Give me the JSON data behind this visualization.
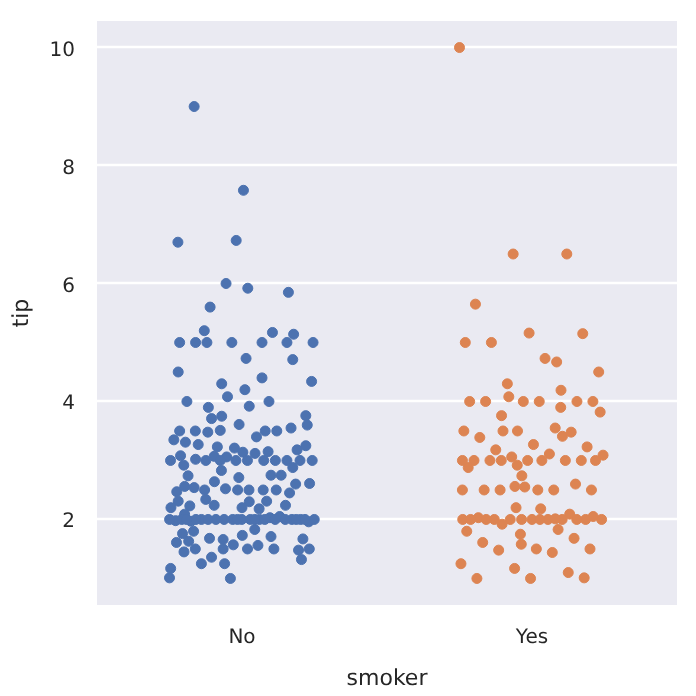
{
  "chart_data": {
    "type": "scatter",
    "xlabel": "smoker",
    "ylabel": "tip",
    "categories": [
      "No",
      "Yes"
    ],
    "ylim": [
      0.55,
      10.45
    ],
    "yticks": [
      2,
      4,
      6,
      8,
      10
    ],
    "grid": "y",
    "marker": "circle",
    "series": [
      {
        "color": "#4c72b0",
        "x": [
          "No",
          "No",
          "No",
          "No",
          "No",
          "No",
          "No",
          "No",
          "No",
          "No",
          "No",
          "No",
          "No",
          "No",
          "No",
          "No",
          "No",
          "No",
          "No",
          "No",
          "No",
          "No",
          "No",
          "No",
          "No",
          "No",
          "No",
          "No",
          "No",
          "No",
          "No",
          "No",
          "No",
          "No",
          "No",
          "No",
          "No",
          "No",
          "No",
          "No",
          "No",
          "No",
          "No",
          "No",
          "No",
          "No",
          "No",
          "No",
          "No",
          "No",
          "No",
          "No",
          "No",
          "No",
          "No",
          "No",
          "No",
          "No",
          "No",
          "No",
          "No",
          "No",
          "No",
          "No",
          "No",
          "No",
          "No",
          "No",
          "No",
          "No",
          "No",
          "No",
          "No",
          "No",
          "No",
          "No",
          "No",
          "No",
          "No",
          "No",
          "No",
          "No",
          "No",
          "No",
          "No",
          "No",
          "No",
          "No",
          "No",
          "No",
          "No",
          "No",
          "No",
          "No",
          "No",
          "No",
          "No",
          "No",
          "No",
          "No",
          "No",
          "No",
          "No",
          "No",
          "No",
          "No",
          "No",
          "No",
          "No",
          "No",
          "No",
          "No",
          "No",
          "No",
          "No",
          "No",
          "No",
          "No",
          "No",
          "No",
          "No",
          "No",
          "No",
          "No",
          "No",
          "No",
          "No",
          "No",
          "No",
          "No",
          "No",
          "No",
          "No",
          "No",
          "No",
          "No",
          "No",
          "No",
          "No",
          "No",
          "No",
          "No",
          "No",
          "No",
          "No",
          "No",
          "No",
          "No",
          "No",
          "No",
          "No"
        ],
        "values": [
          1.01,
          1.66,
          3.5,
          3.31,
          3.61,
          4.71,
          2,
          3.12,
          1.96,
          3.23,
          1.71,
          5,
          1.57,
          3,
          3.02,
          3.92,
          1.67,
          3.71,
          3.5,
          3.35,
          4.08,
          2.75,
          2.23,
          7.58,
          3.18,
          2.34,
          2,
          2,
          4.3,
          3,
          1.45,
          2.5,
          3,
          2.45,
          3.27,
          3.6,
          2,
          3.07,
          2.31,
          5,
          2.24,
          2.54,
          3.06,
          1.32,
          5.6,
          3,
          5,
          6,
          2.05,
          3,
          2.5,
          2.6,
          5.2,
          1.56,
          4.34,
          3.51,
          1.5,
          1.76,
          6.73,
          3.21,
          2,
          1.98,
          3.76,
          2.64,
          3.15,
          2.47,
          1,
          2,
          2.09,
          1.97,
          3,
          3.14,
          5,
          2.2,
          1.25,
          3.08,
          4,
          3,
          2.71,
          3,
          3.4,
          1.83,
          2.03,
          5.17,
          2,
          4,
          5.85,
          3,
          1.5,
          1.8,
          2.92,
          2.31,
          1.68,
          2.5,
          2,
          2.52,
          4.2,
          1.48,
          2,
          2,
          2.18,
          1.5,
          2.83,
          1.5,
          2,
          3.25,
          1.25,
          2,
          2,
          2,
          2.75,
          3.5,
          6.7,
          5,
          5,
          2.3,
          1.5,
          1.36,
          1.63,
          1.73,
          2,
          2.5,
          2,
          2.74,
          2,
          2,
          5.14,
          5,
          3.75,
          2.61,
          2,
          3.5,
          2.5,
          2,
          2,
          3,
          3.48,
          2.24,
          4.5,
          1.61,
          2,
          9,
          5.92,
          4.73,
          2.56,
          3.9,
          4.4,
          1.17,
          2.88,
          3.55,
          2.2
        ]
      },
      {
        "color": "#dd8452",
        "x": [
          "Yes",
          "Yes",
          "Yes",
          "Yes",
          "Yes",
          "Yes",
          "Yes",
          "Yes",
          "Yes",
          "Yes",
          "Yes",
          "Yes",
          "Yes",
          "Yes",
          "Yes",
          "Yes",
          "Yes",
          "Yes",
          "Yes",
          "Yes",
          "Yes",
          "Yes",
          "Yes",
          "Yes",
          "Yes",
          "Yes",
          "Yes",
          "Yes",
          "Yes",
          "Yes",
          "Yes",
          "Yes",
          "Yes",
          "Yes",
          "Yes",
          "Yes",
          "Yes",
          "Yes",
          "Yes",
          "Yes",
          "Yes",
          "Yes",
          "Yes",
          "Yes",
          "Yes",
          "Yes",
          "Yes",
          "Yes",
          "Yes",
          "Yes",
          "Yes",
          "Yes",
          "Yes",
          "Yes",
          "Yes",
          "Yes",
          "Yes",
          "Yes",
          "Yes",
          "Yes",
          "Yes",
          "Yes",
          "Yes",
          "Yes",
          "Yes",
          "Yes",
          "Yes",
          "Yes",
          "Yes",
          "Yes",
          "Yes",
          "Yes",
          "Yes",
          "Yes",
          "Yes",
          "Yes",
          "Yes",
          "Yes",
          "Yes",
          "Yes",
          "Yes",
          "Yes",
          "Yes",
          "Yes",
          "Yes",
          "Yes",
          "Yes",
          "Yes",
          "Yes",
          "Yes",
          "Yes",
          "Yes",
          "Yes"
        ],
        "values": [
          10,
          6.5,
          6.5,
          5.65,
          5.16,
          5.15,
          5,
          4.73,
          4.5,
          4.3,
          4.19,
          4,
          4,
          4,
          4,
          4,
          4,
          3.76,
          3.55,
          3.5,
          3.5,
          3.48,
          3.39,
          3.27,
          3.23,
          3.18,
          3.11,
          3.09,
          3.06,
          3,
          3,
          3,
          3,
          3,
          3,
          3,
          3,
          2.92,
          2.88,
          2.74,
          2.6,
          2.5,
          2.5,
          2.5,
          2.5,
          2.5,
          2.5,
          2.2,
          2.09,
          2.03,
          2,
          2,
          2,
          2,
          2,
          2,
          2,
          2,
          2,
          2,
          2,
          2,
          2,
          1.92,
          1.83,
          1.8,
          1.75,
          1.68,
          1.61,
          1.5,
          1.5,
          1.48,
          1.44,
          1.25,
          1.17,
          1.1,
          1,
          1,
          1.01,
          2.05,
          2.01,
          3.82,
          4.08,
          3.41,
          3.9,
          2.55,
          2.56,
          1.58,
          2.18,
          3,
          3.5,
          4.67,
          5.0
        ]
      }
    ]
  }
}
